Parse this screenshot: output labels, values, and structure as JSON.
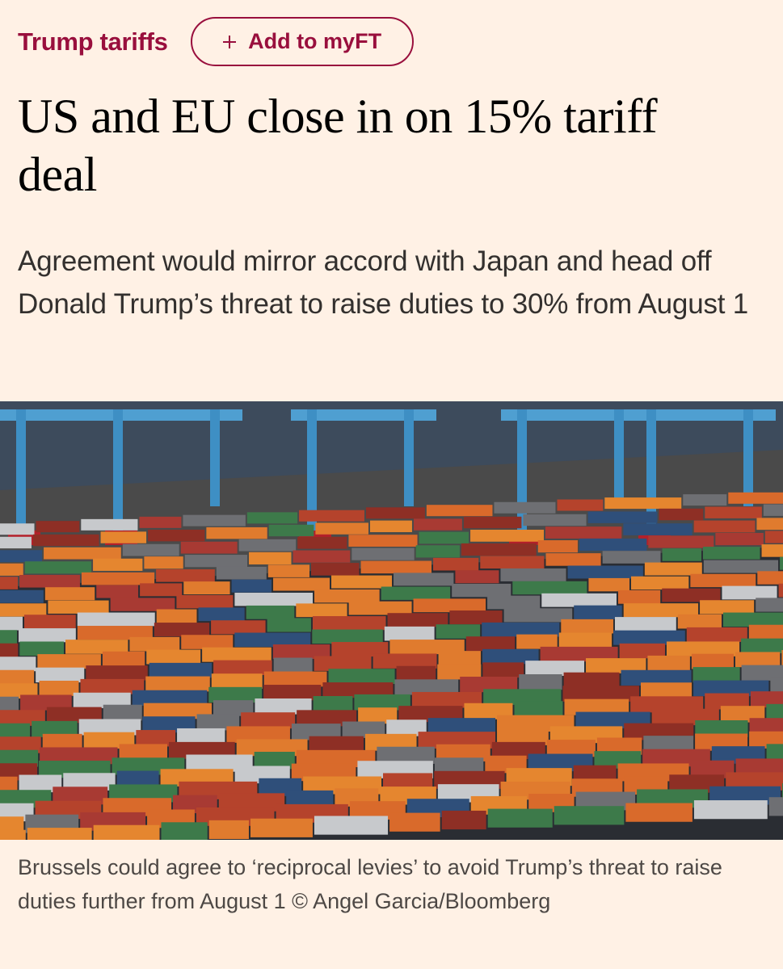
{
  "header": {
    "topic": "Trump tariffs",
    "button": "Add to myFT"
  },
  "article": {
    "headline": "US and EU close in on 15% tariff deal",
    "standfirst": "Agreement would mirror accord with Japan and head off Donald Trump’s threat to raise duties to 30% from August 1",
    "caption": "Brussels could agree to ‘reciprocal levies’ to avoid Trump’s threat to raise duties further from August 1 © Angel Garcia/Bloomberg"
  }
}
